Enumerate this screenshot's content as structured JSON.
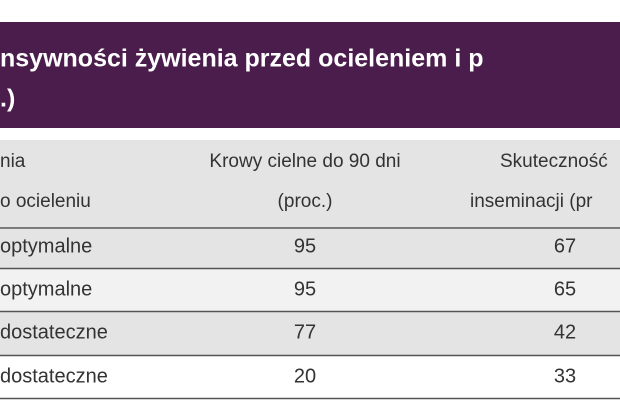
{
  "header": {
    "title": [
      "nsywności żywienia przed ocieleniem i p",
      ".)"
    ]
  },
  "table": {
    "columns": [
      [
        "nia",
        "o ocieleniu"
      ],
      [
        "Krowy cielne do 90 dni",
        "(proc.)"
      ],
      [
        "Skuteczność",
        "inseminacji (pr"
      ]
    ],
    "rows": [
      [
        "optymalne",
        95,
        67
      ],
      [
        "optymalne",
        95,
        65
      ],
      [
        "dostateczne",
        77,
        42
      ],
      [
        "dostateczne",
        20,
        33
      ]
    ]
  }
}
